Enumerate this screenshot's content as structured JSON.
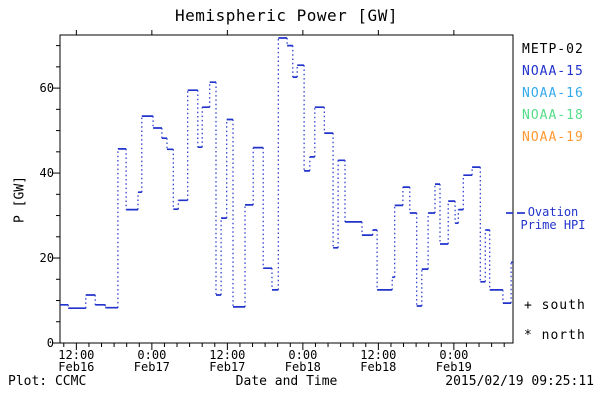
{
  "header": {
    "title": "Hemispheric Power [GW]"
  },
  "footer": {
    "left": "Plot: CCMC",
    "center": "Date and Time",
    "right": "2015/02/19 09:25:11"
  },
  "legend": {
    "satellites": [
      {
        "label": "METP-02",
        "color": "#000000"
      },
      {
        "label": "NOAA-15",
        "color": "#2233cc"
      },
      {
        "label": "NOAA-16",
        "color": "#33aaee"
      },
      {
        "label": "NOAA-18",
        "color": "#55dd88"
      },
      {
        "label": "NOAA-19",
        "color": "#ff9933"
      }
    ],
    "model": {
      "label": "Ovation Prime HPI",
      "color": "#2233cc"
    },
    "hemisphere_markers": [
      {
        "symbol": "+",
        "label": "south"
      },
      {
        "symbol": "*",
        "label": "north"
      }
    ]
  },
  "chart_data": {
    "type": "line",
    "subtype": "step-with-dotted-connectors",
    "title": "Hemispheric Power [GW]",
    "xlabel": "Date and Time",
    "ylabel": "P [GW]",
    "ylim": [
      0,
      72.5
    ],
    "t_range_hours": [
      0,
      72
    ],
    "t0": "2015-02-16 09:25",
    "grid": false,
    "y_major_ticks": [
      0,
      20,
      40,
      60
    ],
    "y_minor_step": 5,
    "x_minor_step_hours": 2,
    "x_minor_start_hour": 0.6,
    "x_major_ticks": [
      {
        "t": 2.6,
        "time": "12:00",
        "date": "Feb16"
      },
      {
        "t": 14.6,
        "time": "0:00",
        "date": "Feb17"
      },
      {
        "t": 26.6,
        "time": "12:00",
        "date": "Feb17"
      },
      {
        "t": 38.6,
        "time": "0:00",
        "date": "Feb18"
      },
      {
        "t": 50.6,
        "time": "12:00",
        "date": "Feb18"
      },
      {
        "t": 62.6,
        "time": "0:00",
        "date": "Feb19"
      }
    ],
    "series": [
      {
        "name": "Ovation Prime HPI",
        "color": "#2233cc",
        "points": [
          [
            0,
            9.0
          ],
          [
            1.3,
            8.2
          ],
          [
            4.1,
            11.3
          ],
          [
            5.6,
            9.0
          ],
          [
            7.2,
            8.3
          ],
          [
            9.2,
            45.7
          ],
          [
            10.5,
            31.4
          ],
          [
            12.4,
            35.5
          ],
          [
            13.0,
            53.4
          ],
          [
            14.8,
            50.6
          ],
          [
            16.2,
            48.2
          ],
          [
            17.0,
            45.6
          ],
          [
            18.0,
            31.5
          ],
          [
            18.8,
            33.6
          ],
          [
            20.3,
            59.5
          ],
          [
            21.9,
            46.1
          ],
          [
            22.6,
            55.5
          ],
          [
            23.8,
            61.4
          ],
          [
            24.8,
            11.3
          ],
          [
            25.6,
            29.4
          ],
          [
            26.5,
            52.6
          ],
          [
            27.5,
            8.5
          ],
          [
            29.4,
            32.5
          ],
          [
            30.7,
            46.0
          ],
          [
            32.3,
            17.6
          ],
          [
            33.7,
            12.5
          ],
          [
            34.7,
            71.8
          ],
          [
            36.1,
            70.0
          ],
          [
            37.0,
            62.6
          ],
          [
            37.7,
            65.4
          ],
          [
            38.8,
            40.5
          ],
          [
            39.7,
            43.8
          ],
          [
            40.5,
            55.5
          ],
          [
            42.0,
            49.4
          ],
          [
            43.4,
            22.4
          ],
          [
            44.2,
            43.0
          ],
          [
            45.3,
            28.5
          ],
          [
            48.0,
            25.4
          ],
          [
            49.7,
            26.6
          ],
          [
            50.4,
            12.5
          ],
          [
            52.8,
            15.5
          ],
          [
            53.2,
            32.4
          ],
          [
            54.5,
            36.7
          ],
          [
            55.6,
            30.6
          ],
          [
            56.7,
            8.7
          ],
          [
            57.5,
            17.4
          ],
          [
            58.5,
            30.6
          ],
          [
            59.6,
            37.4
          ],
          [
            60.4,
            23.3
          ],
          [
            61.7,
            33.4
          ],
          [
            62.8,
            28.2
          ],
          [
            63.3,
            31.4
          ],
          [
            64.1,
            39.5
          ],
          [
            65.5,
            41.4
          ],
          [
            66.8,
            14.4
          ],
          [
            67.6,
            26.6
          ],
          [
            68.3,
            12.5
          ],
          [
            70.4,
            9.4
          ],
          [
            71.7,
            19.0
          ]
        ]
      }
    ]
  }
}
